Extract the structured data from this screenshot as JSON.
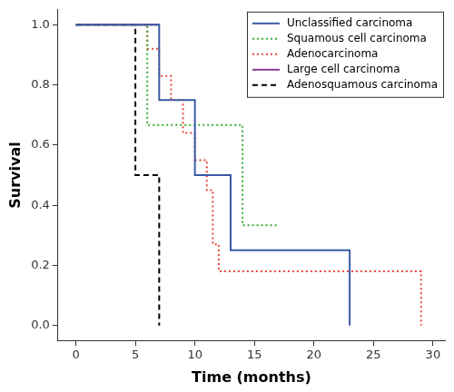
{
  "chart_data": {
    "type": "line",
    "x_label": "Time (months)",
    "y_label": "Survival",
    "xlim": [
      -1.5,
      31
    ],
    "xticks": [
      0,
      5,
      10,
      15,
      20,
      25,
      30
    ],
    "ylim": [
      -0.05,
      1.05
    ],
    "yticks": [
      {
        "value": 0,
        "label": "0.0"
      },
      0.2,
      0.4,
      0.6,
      0.8,
      {
        "value": 1,
        "label": "1.0"
      }
    ],
    "grid": false,
    "legend": "top-right",
    "series": [
      {
        "name": "Unclassified carcinoma",
        "color": "#3b5ba5",
        "line_style": "solid",
        "x": [
          0,
          7,
          10,
          13,
          23
        ],
        "values": [
          1.0,
          0.75,
          0.5,
          0.25,
          0.0
        ]
      },
      {
        "name": "Squamous cell carcinoma",
        "color": "#3aaa35",
        "line_style": "dotted",
        "x": [
          0,
          6,
          14,
          17
        ],
        "values": [
          1.0,
          0.667,
          0.333,
          0.333
        ]
      },
      {
        "name": "Adenocarcinoma",
        "color": "#e8473a",
        "line_style": "dotted",
        "x": [
          0,
          6,
          7,
          8,
          9,
          10,
          11,
          11.5,
          12,
          29
        ],
        "values": [
          1.0,
          0.92,
          0.83,
          0.75,
          0.64,
          0.55,
          0.45,
          0.27,
          0.18,
          0.0
        ]
      },
      {
        "name": "Large cell carcinoma",
        "color": "#8a3c9c",
        "line_style": "solid",
        "x": [
          0,
          7
        ],
        "values": [
          1.0,
          1.0
        ]
      },
      {
        "name": "Adenosquamous carcinoma",
        "color": "#000000",
        "line_style": "dashed",
        "x": [
          0,
          5,
          7
        ],
        "values": [
          1.0,
          0.5,
          0.0
        ]
      }
    ]
  }
}
